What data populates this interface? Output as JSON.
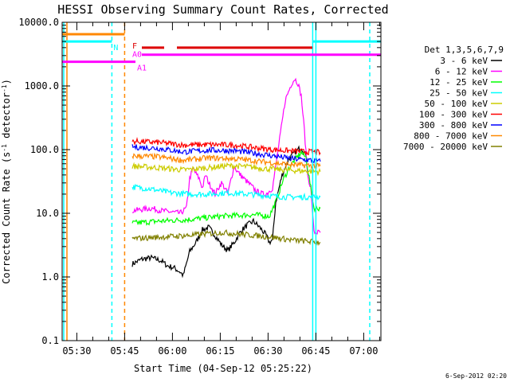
{
  "chart_data": {
    "type": "line",
    "title": "HESSI Observing Summary Count Rates, Corrected",
    "xlabel": "Start Time (04-Sep-12 05:25:22)",
    "ylabel": "Corrected Count Rate (s⁻¹ detector⁻¹)",
    "ylabel_main": "Corrected Count Rate (s",
    "ylabel_sup1": "-1",
    "ylabel_mid": " detector",
    "ylabel_sup2": "-1",
    "ylabel_end": ")",
    "y_scale": "log",
    "ylim": [
      0.1,
      10000
    ],
    "xlim_minutes": [
      0,
      100
    ],
    "x_tick_labels": [
      "05:30",
      "05:45",
      "06:00",
      "06:15",
      "06:30",
      "06:45",
      "07:00"
    ],
    "x_tick_minutes": [
      4.6,
      19.6,
      34.6,
      49.6,
      64.6,
      79.6,
      94.6
    ],
    "y_ticks": [
      {
        "value": 0.1,
        "label": "0.1"
      },
      {
        "value": 1,
        "label": "1.0"
      },
      {
        "value": 10,
        "label": "10.0"
      },
      {
        "value": 100,
        "label": "100.0"
      },
      {
        "value": 1000,
        "label": "1000.0"
      },
      {
        "value": 10000,
        "label": "10000.0"
      }
    ],
    "legend_title": "Det 1,3,5,6,7,9",
    "legend_placement": "right",
    "series": [
      {
        "name": "3 - 6 keV",
        "color": "#000000",
        "points": [
          [
            22,
            1.6
          ],
          [
            25,
            1.9
          ],
          [
            28,
            2.0
          ],
          [
            31,
            1.8
          ],
          [
            33,
            1.5
          ],
          [
            35,
            1.4
          ],
          [
            37,
            1.2
          ],
          [
            38,
            1.05
          ],
          [
            40,
            2.5
          ],
          [
            42,
            3.5
          ],
          [
            44,
            5.5
          ],
          [
            46,
            6.0
          ],
          [
            48,
            4.5
          ],
          [
            50,
            3.2
          ],
          [
            52,
            2.6
          ],
          [
            54,
            3.5
          ],
          [
            56,
            5.2
          ],
          [
            58,
            6.5
          ],
          [
            60,
            7.5
          ],
          [
            62,
            6.0
          ],
          [
            64,
            4.5
          ],
          [
            65,
            3.5
          ],
          [
            66,
            3.8
          ],
          [
            67,
            15
          ],
          [
            69,
            40
          ],
          [
            71,
            70
          ],
          [
            73,
            90
          ],
          [
            75,
            110
          ],
          [
            76.5,
            80
          ]
        ]
      },
      {
        "name": "6 - 12 keV",
        "color": "#ff00ff",
        "points": [
          [
            22,
            11
          ],
          [
            25,
            11.5
          ],
          [
            28,
            12
          ],
          [
            31,
            11
          ],
          [
            34,
            10.5
          ],
          [
            37,
            10
          ],
          [
            39,
            12
          ],
          [
            40,
            35
          ],
          [
            41,
            50
          ],
          [
            43,
            35
          ],
          [
            44,
            25
          ],
          [
            45,
            40
          ],
          [
            46,
            30
          ],
          [
            47,
            25
          ],
          [
            48,
            20
          ],
          [
            49,
            25
          ],
          [
            50,
            30
          ],
          [
            51,
            25
          ],
          [
            52,
            20
          ],
          [
            53,
            35
          ],
          [
            54,
            55
          ],
          [
            55,
            45
          ],
          [
            57,
            35
          ],
          [
            59,
            28
          ],
          [
            61,
            22
          ],
          [
            63,
            20
          ],
          [
            64,
            20
          ],
          [
            66,
            25
          ],
          [
            68,
            120
          ],
          [
            70,
            600
          ],
          [
            72,
            1100
          ],
          [
            73,
            1300
          ],
          [
            74,
            1100
          ],
          [
            75,
            700
          ],
          [
            76,
            200
          ],
          [
            77,
            40
          ],
          [
            78,
            25
          ],
          [
            79,
            5
          ],
          [
            81,
            5
          ]
        ]
      },
      {
        "name": "12 - 25 keV",
        "color": "#00ff00",
        "points": [
          [
            22,
            7
          ],
          [
            30,
            7.5
          ],
          [
            40,
            8
          ],
          [
            50,
            9
          ],
          [
            60,
            9.5
          ],
          [
            65,
            9
          ],
          [
            67,
            15
          ],
          [
            69,
            30
          ],
          [
            71,
            50
          ],
          [
            73,
            70
          ],
          [
            75,
            90
          ],
          [
            76.5,
            75
          ],
          [
            79,
            12
          ],
          [
            81,
            12
          ]
        ]
      },
      {
        "name": "25 - 50 keV",
        "color": "#00ffff",
        "points": [
          [
            22,
            26
          ],
          [
            28,
            24
          ],
          [
            34,
            21
          ],
          [
            40,
            20
          ],
          [
            46,
            20
          ],
          [
            52,
            21
          ],
          [
            58,
            20
          ],
          [
            64,
            19
          ],
          [
            70,
            18
          ],
          [
            76,
            18
          ],
          [
            81,
            18
          ]
        ]
      },
      {
        "name": "50 - 100 keV",
        "color": "#cccc00",
        "points": [
          [
            22,
            55
          ],
          [
            30,
            52
          ],
          [
            38,
            48
          ],
          [
            46,
            52
          ],
          [
            52,
            56
          ],
          [
            58,
            54
          ],
          [
            64,
            50
          ],
          [
            70,
            48
          ],
          [
            76,
            46
          ],
          [
            81,
            45
          ]
        ]
      },
      {
        "name": "100 - 300 keV",
        "color": "#ff0000",
        "points": [
          [
            22,
            135
          ],
          [
            30,
            130
          ],
          [
            38,
            118
          ],
          [
            46,
            120
          ],
          [
            54,
            118
          ],
          [
            60,
            108
          ],
          [
            66,
            100
          ],
          [
            72,
            95
          ],
          [
            78,
            92
          ],
          [
            81,
            90
          ]
        ]
      },
      {
        "name": "300 - 800 keV",
        "color": "#0000ff",
        "points": [
          [
            22,
            110
          ],
          [
            30,
            105
          ],
          [
            38,
            92
          ],
          [
            46,
            98
          ],
          [
            54,
            96
          ],
          [
            60,
            88
          ],
          [
            66,
            80
          ],
          [
            72,
            72
          ],
          [
            78,
            68
          ],
          [
            81,
            65
          ]
        ]
      },
      {
        "name": "800 - 7000 keV",
        "color": "#ff8800",
        "points": [
          [
            22,
            80
          ],
          [
            30,
            77
          ],
          [
            38,
            68
          ],
          [
            46,
            74
          ],
          [
            54,
            72
          ],
          [
            60,
            67
          ],
          [
            66,
            62
          ],
          [
            72,
            58
          ],
          [
            78,
            56
          ],
          [
            81,
            55
          ]
        ]
      },
      {
        "name": "7000 - 20000 keV",
        "color": "#808000",
        "points": [
          [
            22,
            4
          ],
          [
            30,
            4.2
          ],
          [
            40,
            4.5
          ],
          [
            50,
            5
          ],
          [
            60,
            4.5
          ],
          [
            66,
            4.2
          ],
          [
            72,
            3.8
          ],
          [
            78,
            3.6
          ],
          [
            81,
            3.5
          ]
        ]
      }
    ],
    "flag_bars": [
      {
        "label": "",
        "color": "#ff8800",
        "y": 6500,
        "x0": 0,
        "x1": 19.6
      },
      {
        "label": "N",
        "color": "#00ffff",
        "y": 5000,
        "x0": 0,
        "x1": 15.6
      },
      {
        "label": "F",
        "color": "#dd0000",
        "y": 4000,
        "x0": 25,
        "x1": 32
      },
      {
        "label": "",
        "color": "#dd0000",
        "y": 4000,
        "x0": 36,
        "x1": 78.5
      },
      {
        "label": "A0",
        "color": "#ff00ff",
        "y": 3100,
        "x0": 25,
        "x1": 100
      },
      {
        "label": "A1",
        "color": "#ff00ff",
        "y": 2400,
        "x0": 0,
        "x1": 23
      },
      {
        "label": "",
        "color": "#00ffff",
        "y": 5000,
        "x0": 78.5,
        "x1": 100
      }
    ],
    "vertical_lines": [
      {
        "x": 0.5,
        "color": "#00ffff",
        "style": "solid"
      },
      {
        "x": 1.5,
        "color": "#ff8800",
        "style": "solid"
      },
      {
        "x": 15.6,
        "color": "#00ffff",
        "style": "dashed"
      },
      {
        "x": 19.6,
        "color": "#ff8800",
        "style": "dashed"
      },
      {
        "x": 78.6,
        "color": "#00ffff",
        "style": "solid"
      },
      {
        "x": 79.6,
        "color": "#00ffff",
        "style": "solid"
      },
      {
        "x": 96.5,
        "color": "#00ffff",
        "style": "dashed"
      }
    ]
  },
  "timestamp": "6-Sep-2012 02:20"
}
